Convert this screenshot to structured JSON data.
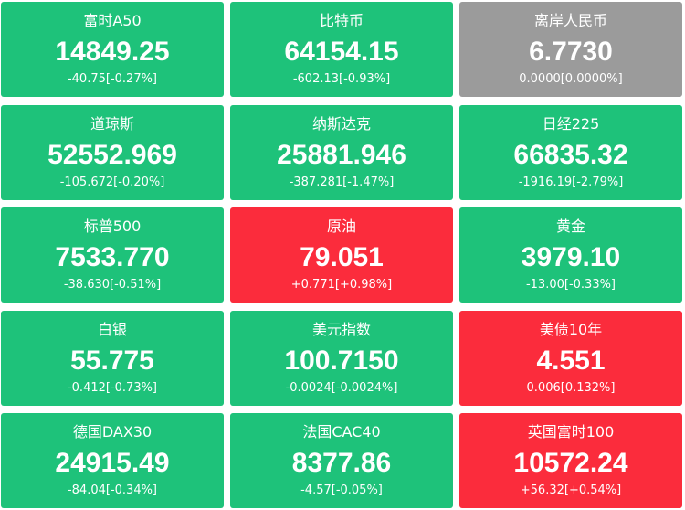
{
  "tiles": [
    {
      "name": "富时A50",
      "price": "14849.25",
      "change": "-40.75[-0.27%]",
      "color": "#1ec27a"
    },
    {
      "name": "比特币",
      "price": "64154.15",
      "change": "-602.13[-0.93%]",
      "color": "#1ec27a"
    },
    {
      "name": "离岸人民币",
      "price": "6.7730",
      "change": "0.0000[0.0000%]",
      "color": "#9b9b9b"
    },
    {
      "name": "道琼斯",
      "price": "52552.969",
      "change": "-105.672[-0.20%]",
      "color": "#1ec27a"
    },
    {
      "name": "纳斯达克",
      "price": "25881.946",
      "change": "-387.281[-1.47%]",
      "color": "#1ec27a"
    },
    {
      "name": "日经225",
      "price": "66835.32",
      "change": "-1916.19[-2.79%]",
      "color": "#1ec27a"
    },
    {
      "name": "标普500",
      "price": "7533.770",
      "change": "-38.630[-0.51%]",
      "color": "#1ec27a"
    },
    {
      "name": "原油",
      "price": "79.051",
      "change": "+0.771[+0.98%]",
      "color": "#fb2c3c"
    },
    {
      "name": "黄金",
      "price": "3979.10",
      "change": "-13.00[-0.33%]",
      "color": "#1ec27a"
    },
    {
      "name": "白银",
      "price": "55.775",
      "change": "-0.412[-0.73%]",
      "color": "#1ec27a"
    },
    {
      "name": "美元指数",
      "price": "100.7150",
      "change": "-0.0024[-0.0024%]",
      "color": "#1ec27a"
    },
    {
      "name": "美债10年",
      "price": "4.551",
      "change": "0.006[0.132%]",
      "color": "#fb2c3c"
    },
    {
      "name": "德国DAX30",
      "price": "24915.49",
      "change": "-84.04[-0.34%]",
      "color": "#1ec27a"
    },
    {
      "name": "法国CAC40",
      "price": "8377.86",
      "change": "-4.57[-0.05%]",
      "color": "#1ec27a"
    },
    {
      "name": "英国富时100",
      "price": "10572.24",
      "change": "+56.32[+0.54%]",
      "color": "#fb2c3c"
    }
  ]
}
